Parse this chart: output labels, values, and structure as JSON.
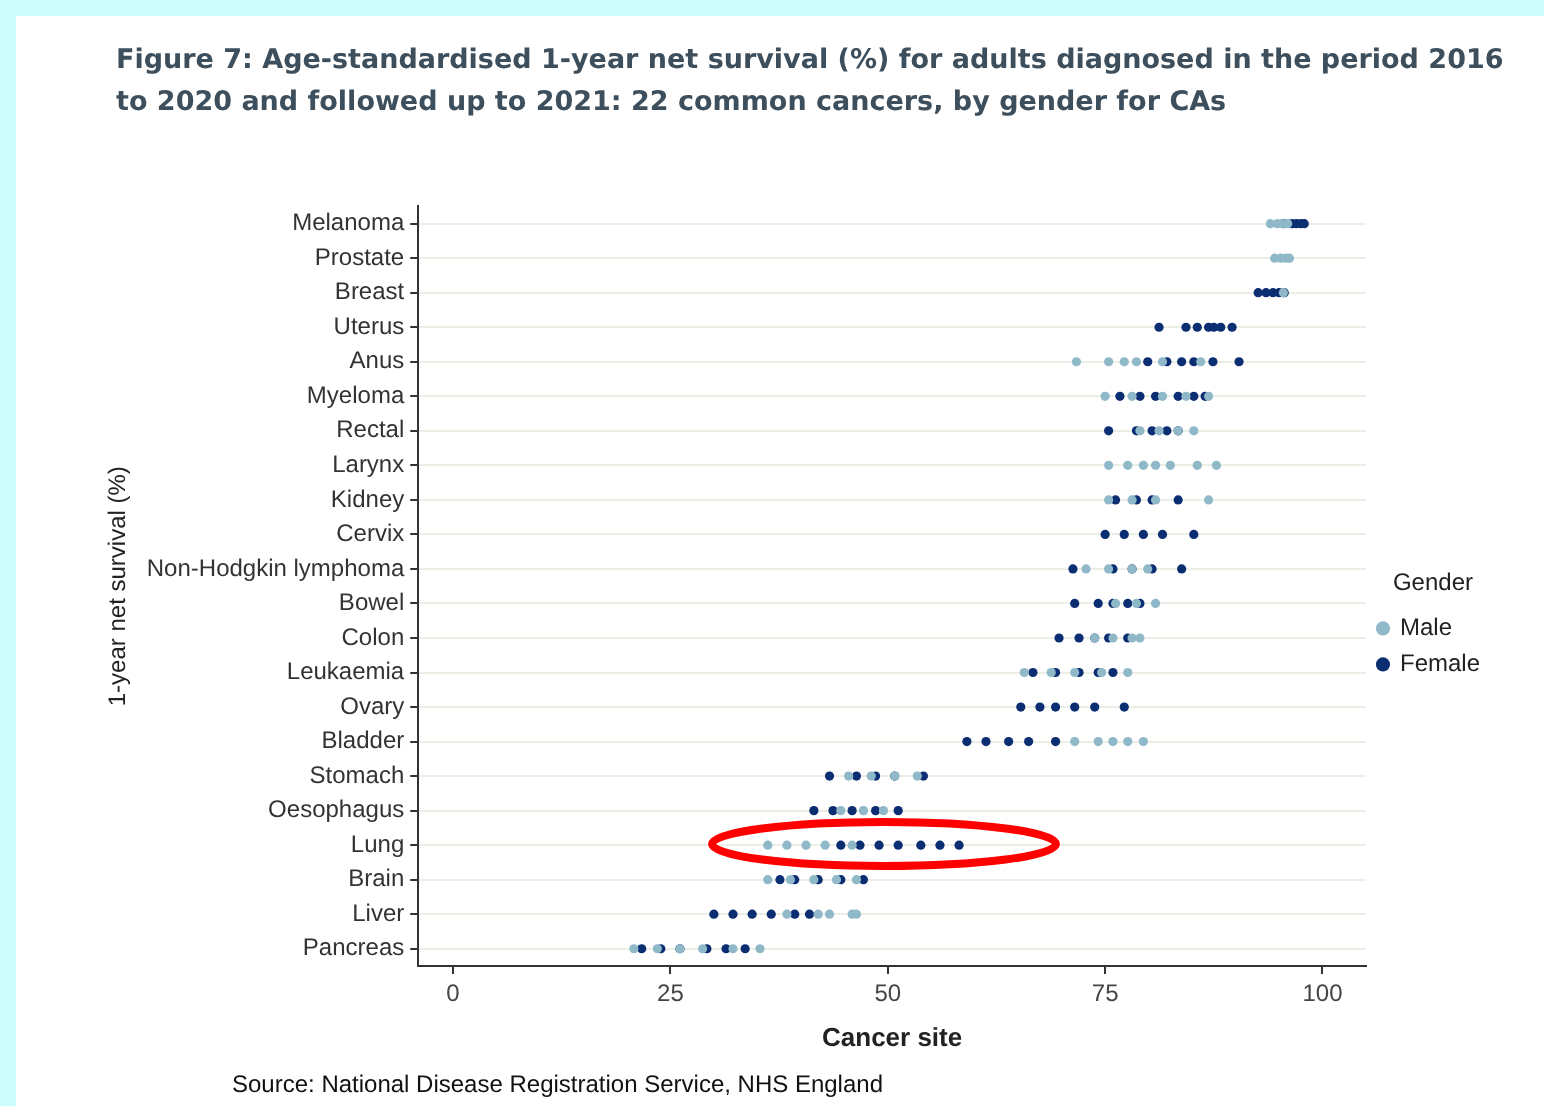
{
  "chart_data": {
    "type": "scatter",
    "orientation": "horizontal",
    "title": "Figure 7: Age-standardised 1-year net survival (%) for adults diagnosed in the period 2016 to 2020 and followed up to 2021: 22 common cancers, by gender for CAs",
    "xlabel": "Cancer site",
    "ylabel": "1-year net survival (%)",
    "legend_title": "Gender",
    "annotations": [
      "Source: National Disease Registration Service, NHS England"
    ],
    "categories": [
      "Melanoma",
      "Prostate",
      "Breast",
      "Uterus",
      "Anus",
      "Myeloma",
      "Rectal",
      "Larynx",
      "Kidney",
      "Cervix",
      "Non-Hodgkin lymphoma",
      "Bowel",
      "Colon",
      "Leukaemia",
      "Ovary",
      "Bladder",
      "Stomach",
      "Oesophagus",
      "Lung",
      "Brain",
      "Liver",
      "Pancreas"
    ],
    "xlim": [
      -4,
      105
    ],
    "xticks": [
      0,
      25,
      50,
      75,
      100
    ],
    "grid": "y",
    "legend": "right",
    "marker": "circle",
    "series": [
      {
        "name": "Male",
        "color": "#8fb8c8",
        "x": [
          "Melanoma",
          "Melanoma",
          "Melanoma",
          "Melanoma",
          "Prostate",
          "Prostate",
          "Prostate",
          "Prostate",
          "Breast",
          "Anus",
          "Anus",
          "Anus",
          "Anus",
          "Anus",
          "Anus",
          "Myeloma",
          "Myeloma",
          "Myeloma",
          "Myeloma",
          "Myeloma",
          "Rectal",
          "Rectal",
          "Rectal",
          "Rectal",
          "Larynx",
          "Larynx",
          "Larynx",
          "Larynx",
          "Larynx",
          "Larynx",
          "Larynx",
          "Kidney",
          "Kidney",
          "Kidney",
          "Kidney",
          "Non-Hodgkin lymphoma",
          "Non-Hodgkin lymphoma",
          "Non-Hodgkin lymphoma",
          "Non-Hodgkin lymphoma",
          "Bowel",
          "Bowel",
          "Bowel",
          "Colon",
          "Colon",
          "Colon",
          "Colon",
          "Leukaemia",
          "Leukaemia",
          "Leukaemia",
          "Leukaemia",
          "Leukaemia",
          "Bladder",
          "Bladder",
          "Bladder",
          "Bladder",
          "Bladder",
          "Stomach",
          "Stomach",
          "Stomach",
          "Stomach",
          "Oesophagus",
          "Oesophagus",
          "Oesophagus",
          "Lung",
          "Lung",
          "Lung",
          "Lung",
          "Lung",
          "Brain",
          "Brain",
          "Brain",
          "Brain",
          "Brain",
          "Liver",
          "Liver",
          "Liver",
          "Liver",
          "Liver",
          "Pancreas",
          "Pancreas",
          "Pancreas",
          "Pancreas",
          "Pancreas",
          "Pancreas"
        ],
        "values": [
          94.0,
          94.8,
          95.4,
          96.0,
          94.5,
          95.2,
          95.8,
          96.2,
          95.5,
          71.7,
          75.4,
          77.2,
          78.6,
          81.6,
          86.0,
          75.0,
          78.1,
          81.6,
          84.3,
          86.9,
          79.0,
          81.2,
          83.4,
          85.2,
          75.4,
          77.6,
          79.4,
          80.8,
          82.5,
          85.6,
          87.8,
          75.4,
          78.1,
          80.8,
          86.9,
          72.8,
          75.4,
          78.1,
          79.9,
          76.2,
          78.6,
          80.8,
          73.8,
          75.9,
          78.1,
          79.0,
          65.7,
          68.8,
          71.5,
          74.6,
          77.6,
          71.5,
          74.2,
          75.9,
          77.6,
          79.4,
          45.5,
          48.1,
          50.8,
          53.4,
          44.6,
          47.2,
          49.5,
          36.2,
          38.4,
          40.6,
          42.8,
          45.9,
          36.2,
          38.8,
          41.5,
          44.1,
          46.4,
          38.4,
          42.0,
          43.3,
          45.9,
          46.4,
          20.8,
          23.5,
          26.1,
          28.7,
          32.2,
          35.3
        ]
      },
      {
        "name": "Female",
        "color": "#0b2d72",
        "x": [
          "Melanoma",
          "Melanoma",
          "Melanoma",
          "Melanoma",
          "Melanoma",
          "Breast",
          "Breast",
          "Breast",
          "Breast",
          "Breast",
          "Uterus",
          "Uterus",
          "Uterus",
          "Uterus",
          "Uterus",
          "Uterus",
          "Uterus",
          "Anus",
          "Anus",
          "Anus",
          "Anus",
          "Anus",
          "Anus",
          "Myeloma",
          "Myeloma",
          "Myeloma",
          "Myeloma",
          "Myeloma",
          "Myeloma",
          "Rectal",
          "Rectal",
          "Rectal",
          "Rectal",
          "Rectal",
          "Kidney",
          "Kidney",
          "Kidney",
          "Kidney",
          "Cervix",
          "Cervix",
          "Cervix",
          "Cervix",
          "Cervix",
          "Non-Hodgkin lymphoma",
          "Non-Hodgkin lymphoma",
          "Non-Hodgkin lymphoma",
          "Non-Hodgkin lymphoma",
          "Non-Hodgkin lymphoma",
          "Bowel",
          "Bowel",
          "Bowel",
          "Bowel",
          "Bowel",
          "Colon",
          "Colon",
          "Colon",
          "Colon",
          "Colon",
          "Leukaemia",
          "Leukaemia",
          "Leukaemia",
          "Leukaemia",
          "Leukaemia",
          "Ovary",
          "Ovary",
          "Ovary",
          "Ovary",
          "Ovary",
          "Ovary",
          "Bladder",
          "Bladder",
          "Bladder",
          "Bladder",
          "Bladder",
          "Stomach",
          "Stomach",
          "Stomach",
          "Stomach",
          "Stomach",
          "Oesophagus",
          "Oesophagus",
          "Oesophagus",
          "Oesophagus",
          "Oesophagus",
          "Lung",
          "Lung",
          "Lung",
          "Lung",
          "Lung",
          "Lung",
          "Lung",
          "Brain",
          "Brain",
          "Brain",
          "Brain",
          "Brain",
          "Liver",
          "Liver",
          "Liver",
          "Liver",
          "Liver",
          "Liver",
          "Pancreas",
          "Pancreas",
          "Pancreas",
          "Pancreas",
          "Pancreas",
          "Pancreas"
        ],
        "values": [
          95.5,
          96.5,
          97.0,
          97.5,
          97.9,
          92.6,
          93.5,
          94.3,
          95.0,
          95.6,
          81.2,
          84.3,
          85.6,
          86.9,
          87.5,
          88.3,
          89.6,
          79.9,
          82.1,
          83.8,
          85.2,
          87.4,
          90.4,
          76.7,
          79.0,
          80.8,
          83.4,
          85.2,
          86.5,
          75.4,
          78.6,
          80.4,
          82.1,
          83.4,
          76.2,
          78.6,
          80.4,
          83.4,
          75.0,
          77.2,
          79.4,
          81.6,
          85.2,
          71.3,
          75.9,
          78.1,
          80.4,
          83.8,
          71.5,
          74.2,
          75.9,
          77.6,
          79.0,
          69.7,
          72.0,
          73.8,
          75.4,
          77.6,
          66.7,
          69.3,
          72.0,
          74.2,
          75.9,
          65.3,
          67.5,
          69.3,
          71.5,
          73.8,
          77.2,
          59.1,
          61.3,
          63.9,
          66.2,
          69.3,
          43.3,
          46.4,
          48.6,
          50.8,
          54.1,
          41.5,
          43.7,
          45.9,
          48.6,
          51.2,
          44.6,
          46.8,
          49.0,
          51.2,
          53.8,
          56.0,
          58.2,
          37.6,
          39.3,
          42.0,
          44.6,
          47.2,
          30.0,
          32.2,
          34.4,
          36.6,
          39.3,
          41.0,
          21.7,
          23.9,
          26.1,
          29.2,
          31.4,
          33.6
        ]
      }
    ]
  }
}
